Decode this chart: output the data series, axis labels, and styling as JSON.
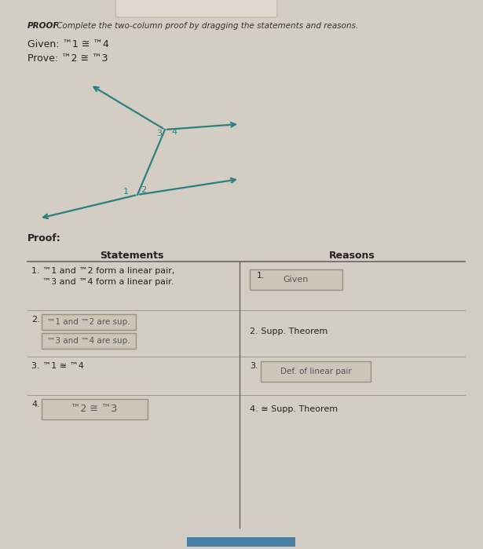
{
  "background_color": "#d4cdc3",
  "title_bold": "PROOF",
  "title_rest": " Complete the two-column proof by dragging the statements and reasons.",
  "given_text": "Given: ™1 ≅ ™4",
  "prove_text": "Prove: ™2 ≅ ™3",
  "proof_label": "Proof:",
  "statements_header": "Statements",
  "reasons_header": "Reasons",
  "teal_color": "#2a8080",
  "box_facecolor": "#ccc6b8",
  "box_edgecolor": "#999080",
  "text_color": "#222222",
  "line_color": "#666666",
  "row1_stmt1": "1. ™1 and ™2 form a linear pair,",
  "row1_stmt2": "    ™3 and ™4 form a linear pair.",
  "row2_box1": "™1 and ™2 are sup.",
  "row2_box2": "™3 and ™4 are sup.",
  "row3_stmt": "3. ™1 ≅ ™4",
  "row4_box": "™2 ≅ ™3",
  "reason1_box": "Given",
  "reason2_text": "2. Supp. Theorem",
  "reason3_box": "Def. of linear pair",
  "reason4_text": "4. ≅ Supp. Theorem",
  "nav_color": "#4a7fa5",
  "top_bar_color": "#e0d8cc"
}
